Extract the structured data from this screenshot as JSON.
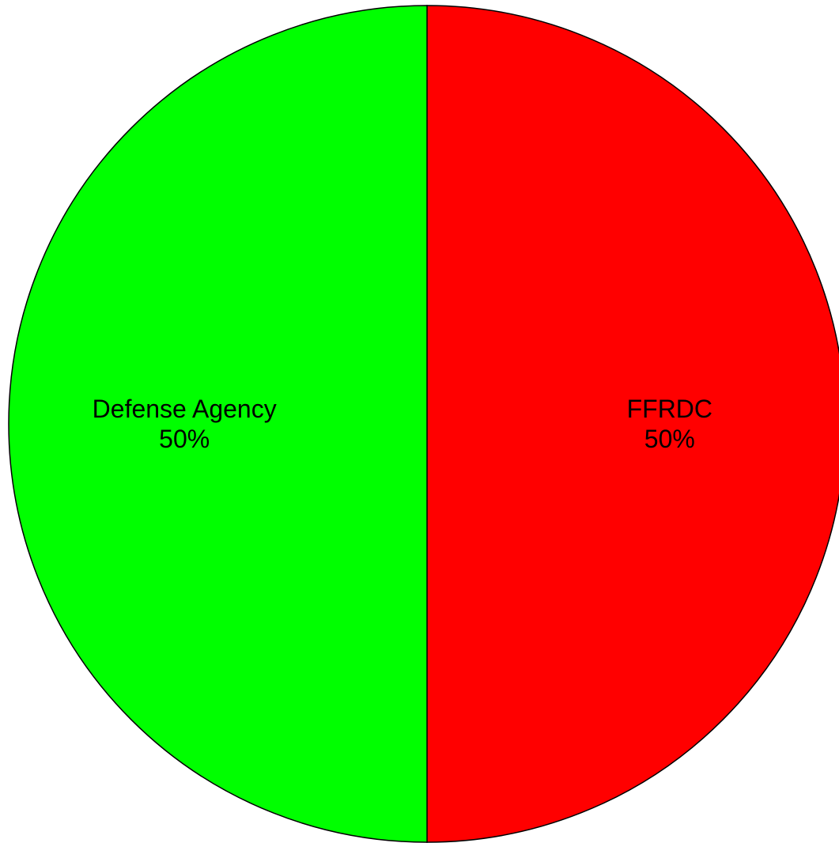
{
  "chart_data": {
    "type": "pie",
    "title": "",
    "legend": "none",
    "slices": [
      {
        "label": "FFRDC",
        "value": 50,
        "percent_label": "50%",
        "color": "#ff0000"
      },
      {
        "label": "Defense Agency",
        "value": 50,
        "percent_label": "50%",
        "color": "#00ff00"
      }
    ]
  }
}
